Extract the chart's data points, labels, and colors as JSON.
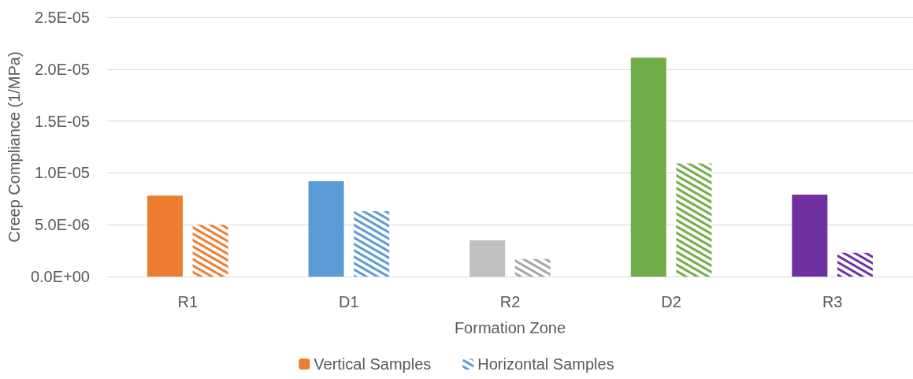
{
  "chart_data": {
    "type": "bar",
    "xlabel": "Formation Zone",
    "ylabel": "Creep Compliance (1/MPa)",
    "categories": [
      "R1",
      "D1",
      "R2",
      "D2",
      "R3"
    ],
    "series": [
      {
        "name": "Vertical Samples",
        "color": "#ed7d31",
        "colors": [
          "#ed7d31",
          "#5b9bd5",
          "#bfbfbf",
          "#70ad47",
          "#7030a0"
        ],
        "values": [
          7.8e-06,
          9.2e-06,
          3.5e-06,
          2.11e-05,
          7.9e-06
        ]
      },
      {
        "name": "Horizontal Samples",
        "color": "#5b9bd5",
        "colors": [
          "#ed7d31",
          "#5b9bd5",
          "#a5a5a5",
          "#70ad47",
          "#7030a0"
        ],
        "values": [
          5e-06,
          6.3e-06,
          1.7e-06,
          1.09e-05,
          2.3e-06
        ]
      }
    ],
    "ylim": [
      0,
      2.5e-05
    ],
    "yticks": [
      {
        "value": 0,
        "label": "0.0E+00"
      },
      {
        "value": 5e-06,
        "label": "5.0E-06"
      },
      {
        "value": 1e-05,
        "label": "1.0E-05"
      },
      {
        "value": 1.5e-05,
        "label": "1.5E-05"
      },
      {
        "value": 2e-05,
        "label": "2.0E-05"
      },
      {
        "value": 2.5e-05,
        "label": "2.5E-05"
      }
    ],
    "grid": "y",
    "legend": "bottom"
  }
}
